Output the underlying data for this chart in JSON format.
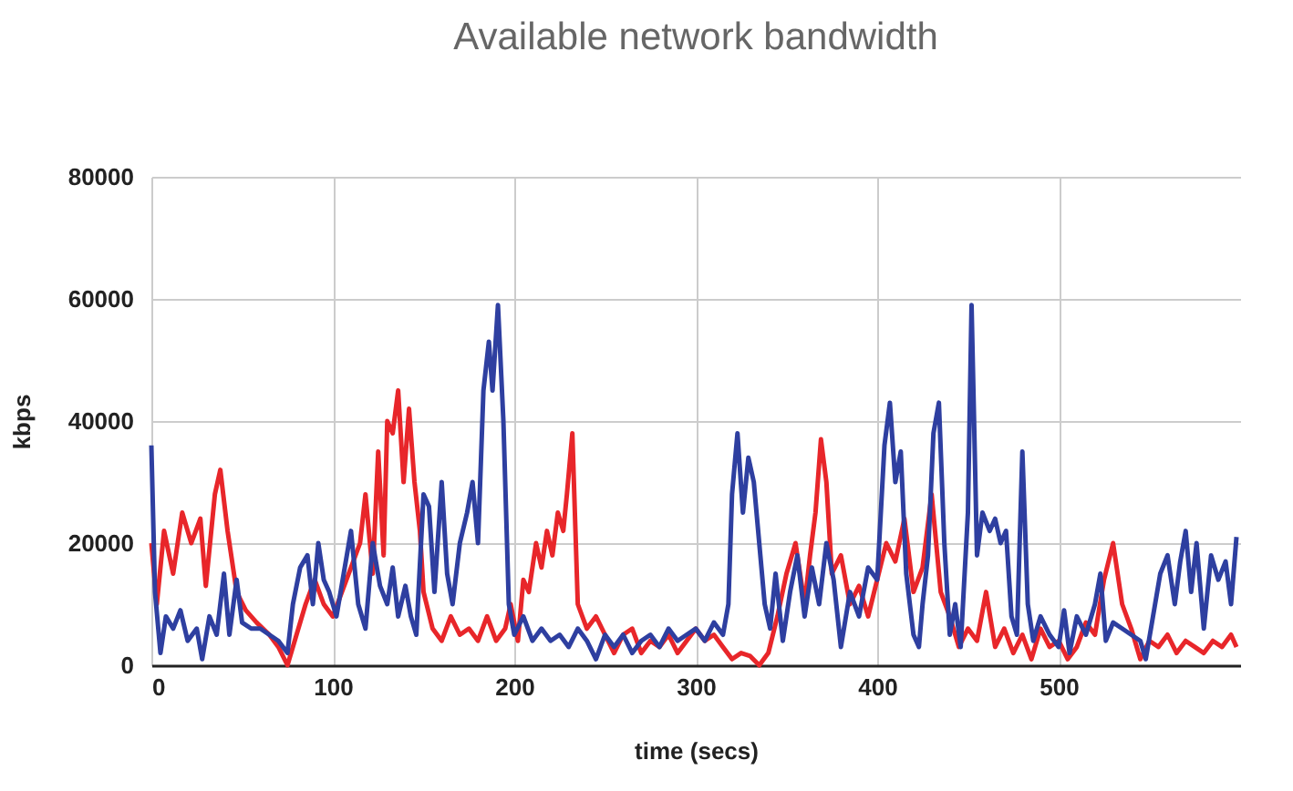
{
  "chart_data": {
    "type": "line",
    "title": "Available network bandwidth",
    "xlabel": "time (secs)",
    "ylabel": "kbps",
    "xlim": [
      0,
      600
    ],
    "xticks": [
      0,
      100,
      200,
      300,
      400,
      500
    ],
    "ylim": [
      0,
      80000
    ],
    "yticks": [
      0,
      20000,
      40000,
      60000,
      80000
    ],
    "grid": true,
    "series": [
      {
        "color": "#e8262a",
        "x": [
          0,
          3,
          7,
          12,
          17,
          22,
          27,
          30,
          35,
          38,
          42,
          47,
          52,
          58,
          65,
          70,
          75,
          80,
          85,
          90,
          95,
          100,
          105,
          110,
          115,
          118,
          122,
          125,
          128,
          130,
          133,
          136,
          139,
          142,
          145,
          148,
          150,
          155,
          160,
          165,
          170,
          175,
          180,
          185,
          190,
          195,
          198,
          202,
          205,
          208,
          212,
          215,
          218,
          221,
          224,
          227,
          229,
          232,
          235,
          240,
          245,
          250,
          255,
          260,
          265,
          270,
          275,
          280,
          285,
          290,
          295,
          300,
          305,
          310,
          315,
          320,
          325,
          330,
          335,
          340,
          345,
          350,
          355,
          360,
          363,
          366,
          369,
          372,
          375,
          380,
          385,
          390,
          395,
          400,
          405,
          410,
          415,
          420,
          425,
          430,
          435,
          440,
          445,
          450,
          455,
          460,
          465,
          470,
          475,
          480,
          485,
          490,
          495,
          500,
          505,
          510,
          515,
          520,
          525,
          530,
          535,
          540,
          545,
          550,
          555,
          560,
          565,
          570,
          575,
          580,
          585,
          590,
          595,
          598
        ],
        "values": [
          20000,
          10000,
          22000,
          15000,
          25000,
          20000,
          24000,
          13000,
          28000,
          32000,
          22000,
          12000,
          9000,
          7000,
          5000,
          3000,
          0,
          5000,
          10000,
          14000,
          10000,
          8000,
          12000,
          16000,
          20000,
          28000,
          15000,
          35000,
          18000,
          40000,
          38000,
          45000,
          30000,
          42000,
          30000,
          22000,
          12000,
          6000,
          4000,
          8000,
          5000,
          6000,
          4000,
          8000,
          4000,
          6000,
          10000,
          4000,
          14000,
          12000,
          20000,
          16000,
          22000,
          18000,
          25000,
          22000,
          28000,
          38000,
          10000,
          6000,
          8000,
          5000,
          2000,
          5000,
          6000,
          2000,
          4000,
          3000,
          5000,
          2000,
          4000,
          6000,
          4000,
          5000,
          3000,
          1000,
          2000,
          1500,
          0,
          2000,
          8000,
          15000,
          20000,
          10000,
          18000,
          25000,
          37000,
          30000,
          15000,
          18000,
          10000,
          13000,
          8000,
          14000,
          20000,
          17000,
          24000,
          12000,
          16000,
          28000,
          12000,
          8000,
          3000,
          6000,
          4000,
          12000,
          3000,
          6000,
          2000,
          5000,
          1000,
          6000,
          3000,
          4000,
          1000,
          3000,
          7000,
          5000,
          14000,
          20000,
          10000,
          6000,
          1000,
          4000,
          3000,
          5000,
          2000,
          4000,
          3000,
          2000,
          4000,
          3000,
          5000,
          3000
        ]
      },
      {
        "color": "#2e3fa0",
        "x": [
          0,
          2,
          5,
          8,
          12,
          16,
          20,
          25,
          28,
          32,
          36,
          40,
          43,
          47,
          50,
          55,
          60,
          65,
          70,
          75,
          78,
          82,
          86,
          89,
          92,
          95,
          98,
          102,
          106,
          110,
          114,
          118,
          122,
          126,
          130,
          133,
          136,
          140,
          143,
          146,
          150,
          153,
          156,
          160,
          163,
          166,
          170,
          174,
          177,
          180,
          183,
          186,
          188,
          191,
          194,
          197,
          200,
          205,
          210,
          215,
          220,
          225,
          230,
          235,
          240,
          245,
          250,
          255,
          260,
          265,
          270,
          275,
          280,
          285,
          290,
          295,
          300,
          305,
          310,
          315,
          318,
          320,
          323,
          326,
          329,
          332,
          335,
          338,
          341,
          344,
          348,
          352,
          356,
          360,
          364,
          368,
          372,
          376,
          380,
          385,
          390,
          395,
          400,
          404,
          407,
          410,
          413,
          416,
          420,
          423,
          425,
          428,
          431,
          434,
          437,
          440,
          443,
          446,
          450,
          452,
          455,
          458,
          462,
          465,
          468,
          471,
          474,
          477,
          480,
          483,
          486,
          490,
          495,
          500,
          503,
          506,
          510,
          515,
          520,
          523,
          526,
          530,
          535,
          540,
          545,
          548,
          552,
          556,
          560,
          564,
          567,
          570,
          573,
          576,
          580,
          584,
          588,
          592,
          595,
          598
        ],
        "values": [
          36000,
          12000,
          2000,
          8000,
          6000,
          9000,
          4000,
          6000,
          1000,
          8000,
          5000,
          15000,
          5000,
          14000,
          7000,
          6000,
          6000,
          5000,
          4000,
          2000,
          10000,
          16000,
          18000,
          10000,
          20000,
          14000,
          12000,
          8000,
          15000,
          22000,
          10000,
          6000,
          20000,
          13000,
          10000,
          16000,
          8000,
          13000,
          8000,
          5000,
          28000,
          26000,
          12000,
          30000,
          15000,
          10000,
          20000,
          25000,
          30000,
          20000,
          45000,
          53000,
          45000,
          59000,
          40000,
          10000,
          5000,
          8000,
          4000,
          6000,
          4000,
          5000,
          3000,
          6000,
          4000,
          1000,
          5000,
          3000,
          5000,
          2000,
          4000,
          5000,
          3000,
          6000,
          4000,
          5000,
          6000,
          4000,
          7000,
          5000,
          10000,
          28000,
          38000,
          25000,
          34000,
          30000,
          20000,
          10000,
          6000,
          15000,
          4000,
          12000,
          18000,
          8000,
          16000,
          10000,
          20000,
          14000,
          3000,
          12000,
          8000,
          16000,
          14000,
          36000,
          43000,
          30000,
          35000,
          15000,
          5000,
          3000,
          10000,
          18000,
          38000,
          43000,
          20000,
          5000,
          10000,
          3000,
          25000,
          59000,
          18000,
          25000,
          22000,
          24000,
          20000,
          22000,
          8000,
          5000,
          35000,
          10000,
          4000,
          8000,
          5000,
          3000,
          9000,
          2000,
          8000,
          5000,
          10000,
          15000,
          4000,
          7000,
          6000,
          5000,
          4000,
          1000,
          8000,
          15000,
          18000,
          10000,
          17000,
          22000,
          12000,
          20000,
          6000,
          18000,
          14000,
          17000,
          10000,
          21000
        ]
      }
    ]
  }
}
